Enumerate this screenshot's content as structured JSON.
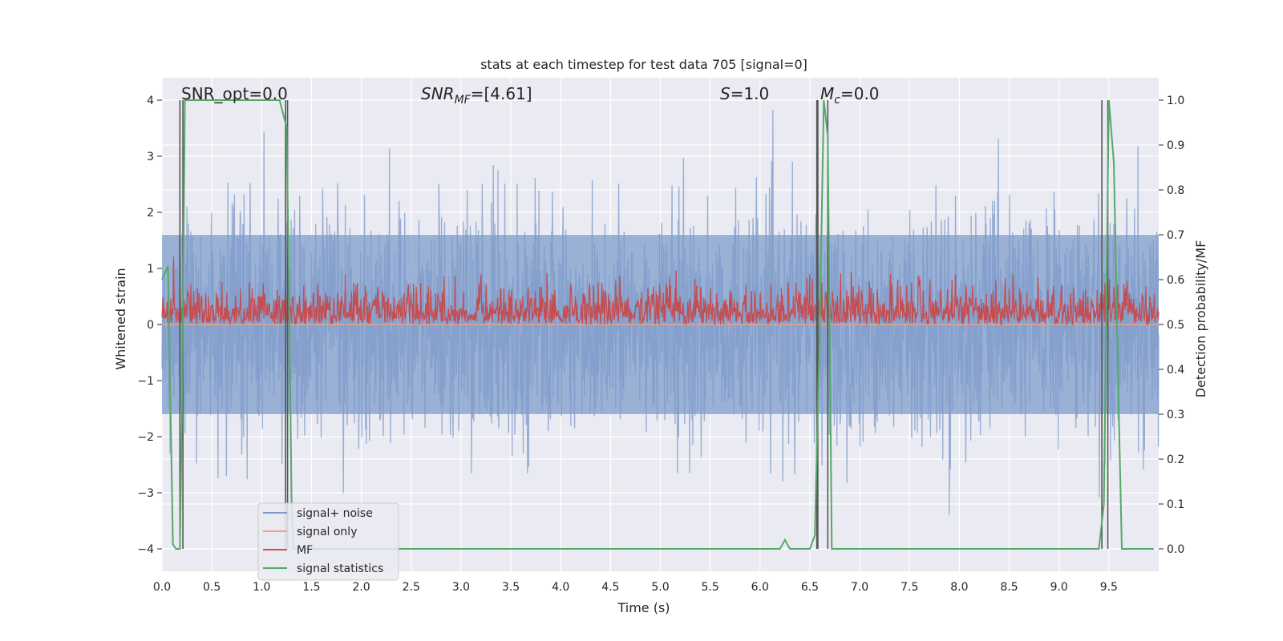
{
  "chart_data": {
    "type": "line",
    "title": "stats at each timestep for test data 705 [signal=0]",
    "xlabel": "Time (s)",
    "ylabel": "Whitened strain",
    "y2label": "Detection probability/MF",
    "xlim": [
      0,
      10
    ],
    "ylim": [
      -4.4,
      4.4
    ],
    "y2lim": [
      -0.05,
      1.05
    ],
    "xticks": [
      "0.0",
      "0.5",
      "1.0",
      "1.5",
      "2.0",
      "2.5",
      "3.0",
      "3.5",
      "4.0",
      "4.5",
      "5.0",
      "5.5",
      "6.0",
      "6.5",
      "7.0",
      "7.5",
      "8.0",
      "8.5",
      "9.0",
      "9.5"
    ],
    "yticks": [
      "−4",
      "−3",
      "−2",
      "−1",
      "0",
      "1",
      "2",
      "3",
      "4"
    ],
    "y2ticks": [
      "0.0",
      "0.1",
      "0.2",
      "0.3",
      "0.4",
      "0.5",
      "0.6",
      "0.7",
      "0.8",
      "0.9",
      "1.0"
    ],
    "grid": true,
    "legend_position": "lower-left",
    "annotations": {
      "snr_opt": "SNR_opt=0.0",
      "snr_mf_base": "SNR",
      "snr_mf_sub": "MF",
      "snr_mf_rest": "=[4.61]",
      "s_base": "S",
      "s_rest": "=1.0",
      "mc_base": "M",
      "mc_sub": "c",
      "mc_rest": "=0.0"
    },
    "series": [
      {
        "name": "signal+ noise",
        "color": "#7f9ccb",
        "description_values": "noise envelope approx ±1.6, peaks up to ±4"
      },
      {
        "name": "signal only",
        "color": "#e8a386",
        "values_constant": 0
      },
      {
        "name": "MF",
        "color": "#c44e52",
        "range": [
          0.5,
          0.68
        ]
      },
      {
        "name": "signal statistics",
        "color": "#55a868",
        "x": [
          0.0,
          0.06,
          0.11,
          0.14,
          0.18,
          0.2,
          0.23,
          0.25,
          0.3,
          1.1,
          1.18,
          1.25,
          1.28,
          1.3,
          1.32,
          6.2,
          6.25,
          6.3,
          6.5,
          6.55,
          6.6,
          6.64,
          6.68,
          6.72,
          9.4,
          9.45,
          9.5,
          9.55,
          9.6,
          9.63,
          9.95
        ],
        "values": [
          0.6,
          0.63,
          0.01,
          0.0,
          0.0,
          0.3,
          1.0,
          1.0,
          1.0,
          1.0,
          1.0,
          0.94,
          0.5,
          0.1,
          0.0,
          0.0,
          0.02,
          0.0,
          0.0,
          0.03,
          0.5,
          1.0,
          0.92,
          0.0,
          0.0,
          0.1,
          1.0,
          0.86,
          0.3,
          0.0,
          0.0
        ]
      }
    ],
    "detection_lines_x": [
      0.18,
      0.21,
      1.24,
      1.26,
      6.57,
      6.58,
      6.68,
      9.43,
      9.49
    ]
  }
}
